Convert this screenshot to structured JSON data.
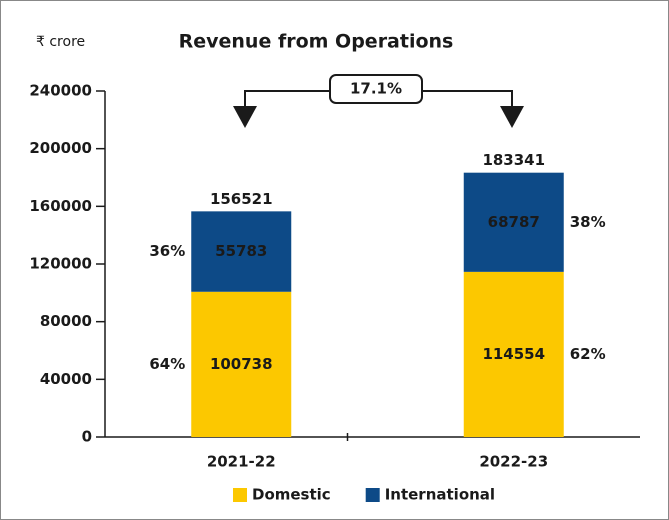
{
  "chart_data": {
    "type": "stacked_bar",
    "title": "Revenue from Operations",
    "y_unit": "₹ crore",
    "categories": [
      "2021-22",
      "2022-23"
    ],
    "series": [
      {
        "name": "Domestic",
        "color": "#fcc800",
        "values": [
          100738,
          114554
        ],
        "share_labels": [
          "64%",
          "62%"
        ]
      },
      {
        "name": "International",
        "color": "#0d4a87",
        "values": [
          55783,
          68787
        ],
        "share_labels": [
          "36%",
          "38%"
        ]
      }
    ],
    "totals": [
      156521,
      183341
    ],
    "growth_label": "17.1%",
    "ylim": [
      0,
      240000
    ],
    "yticks": [
      0,
      40000,
      80000,
      120000,
      160000,
      200000,
      240000
    ],
    "legend": "bottom"
  }
}
